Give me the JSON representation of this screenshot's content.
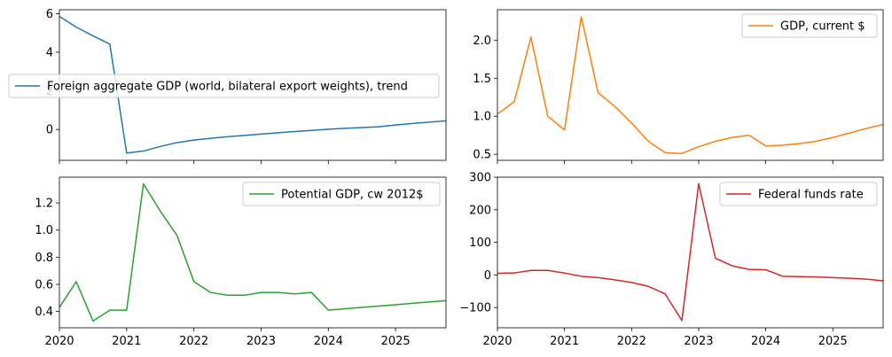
{
  "chart_data": [
    {
      "type": "line",
      "x": [
        2020.0,
        2020.25,
        2020.5,
        2020.75,
        2021.0,
        2021.25,
        2021.5,
        2021.75,
        2022.0,
        2022.25,
        2022.5,
        2022.75,
        2023.0,
        2023.25,
        2023.5,
        2023.75,
        2024.0,
        2024.25,
        2024.5,
        2024.75,
        2025.0,
        2025.25,
        2025.5,
        2025.75
      ],
      "series": [
        {
          "name": "Foreign aggregate GDP (world, bilateral export weights), trend",
          "color": "#1f77b4",
          "values": [
            5.85,
            5.3,
            4.85,
            4.42,
            -1.22,
            -1.12,
            -0.88,
            -0.68,
            -0.55,
            -0.46,
            -0.38,
            -0.31,
            -0.24,
            -0.17,
            -0.11,
            -0.05,
            0.01,
            0.06,
            0.1,
            0.14,
            0.23,
            0.31,
            0.38,
            0.45
          ]
        }
      ],
      "xlim": [
        2020.0,
        2025.75
      ],
      "ylim": [
        -1.6,
        6.2
      ],
      "yticks": [
        0,
        2,
        4,
        6
      ],
      "ytick_labels": [
        "0",
        "2",
        "4",
        "6"
      ],
      "legend": "left",
      "grid": false
    },
    {
      "type": "line",
      "x": [
        2020.0,
        2020.25,
        2020.5,
        2020.75,
        2021.0,
        2021.25,
        2021.5,
        2021.75,
        2022.0,
        2022.25,
        2022.5,
        2022.75,
        2023.0,
        2023.25,
        2023.5,
        2023.75,
        2024.0,
        2024.25,
        2024.5,
        2024.75,
        2025.0,
        2025.25,
        2025.5,
        2025.75
      ],
      "series": [
        {
          "name": "GDP, current $",
          "color": "#ff7f0e",
          "values": [
            1.03,
            1.19,
            2.04,
            1.0,
            0.82,
            2.31,
            1.31,
            1.13,
            0.91,
            0.67,
            0.52,
            0.51,
            0.6,
            0.67,
            0.72,
            0.75,
            0.61,
            0.62,
            0.64,
            0.67,
            0.72,
            0.78,
            0.84,
            0.89
          ]
        }
      ],
      "xlim": [
        2020.0,
        2025.75
      ],
      "ylim": [
        0.42,
        2.4
      ],
      "yticks": [
        0.5,
        1.0,
        1.5,
        2.0
      ],
      "ytick_labels": [
        "0.5",
        "1.0",
        "1.5",
        "2.0"
      ],
      "legend": "top-right",
      "grid": false
    },
    {
      "type": "line",
      "x": [
        2020.0,
        2020.25,
        2020.5,
        2020.75,
        2021.0,
        2021.25,
        2021.5,
        2021.75,
        2022.0,
        2022.25,
        2022.5,
        2022.75,
        2023.0,
        2023.25,
        2023.5,
        2023.75,
        2024.0,
        2024.25,
        2024.5,
        2024.75,
        2025.0,
        2025.25,
        2025.5,
        2025.75
      ],
      "series": [
        {
          "name": "Potential GDP, cw 2012$",
          "color": "#2ca02c",
          "values": [
            0.43,
            0.62,
            0.33,
            0.41,
            0.41,
            1.34,
            1.14,
            0.96,
            0.62,
            0.54,
            0.52,
            0.52,
            0.54,
            0.54,
            0.53,
            0.54,
            0.41,
            0.42,
            0.43,
            0.44,
            0.45,
            0.46,
            0.47,
            0.48
          ]
        }
      ],
      "xlim": [
        2020.0,
        2025.75
      ],
      "ylim": [
        0.28,
        1.39
      ],
      "yticks": [
        0.4,
        0.6,
        0.8,
        1.0,
        1.2
      ],
      "ytick_labels": [
        "0.4",
        "0.6",
        "0.8",
        "1.0",
        "1.2"
      ],
      "xticks": [
        2020,
        2021,
        2022,
        2023,
        2024,
        2025
      ],
      "xtick_labels": [
        "2020",
        "2021",
        "2022",
        "2023",
        "2024",
        "2025"
      ],
      "legend": "top-right",
      "grid": false
    },
    {
      "type": "line",
      "x": [
        2020.0,
        2020.25,
        2020.5,
        2020.75,
        2021.0,
        2021.25,
        2021.5,
        2021.75,
        2022.0,
        2022.25,
        2022.5,
        2022.75,
        2023.0,
        2023.25,
        2023.5,
        2023.75,
        2024.0,
        2024.25,
        2024.5,
        2024.75,
        2025.0,
        2025.25,
        2025.5,
        2025.75
      ],
      "series": [
        {
          "name": "Federal funds rate",
          "color": "#d62728",
          "values": [
            5,
            6,
            14,
            14,
            6,
            -4,
            -8,
            -15,
            -23,
            -35,
            -58,
            -140,
            280,
            51,
            28,
            17,
            16,
            -4,
            -5,
            -6,
            -8,
            -10,
            -13,
            -18
          ]
        }
      ],
      "xlim": [
        2020.0,
        2025.75
      ],
      "ylim": [
        -162,
        300
      ],
      "yticks": [
        -100,
        0,
        100,
        200,
        300
      ],
      "ytick_labels": [
        "−100",
        "0",
        "100",
        "200",
        "300"
      ],
      "xticks": [
        2020,
        2021,
        2022,
        2023,
        2024,
        2025
      ],
      "xtick_labels": [
        "2020",
        "2021",
        "2022",
        "2023",
        "2024",
        "2025"
      ],
      "legend": "top-right",
      "grid": false
    }
  ]
}
